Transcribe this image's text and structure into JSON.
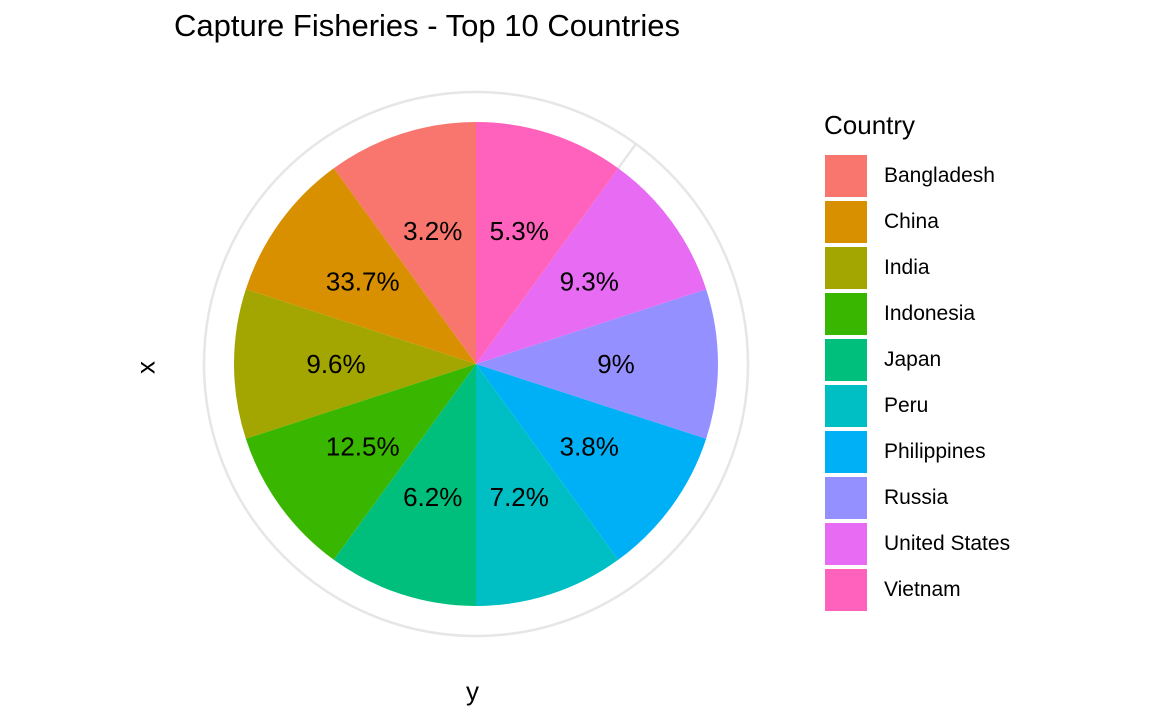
{
  "chart_data": {
    "type": "pie",
    "title": "Capture Fisheries - Top 10 Countries",
    "xlabel": "y",
    "ylabel": "x",
    "legend_title": "Country",
    "legend_position": "right",
    "grid": true,
    "slices": [
      {
        "label": "Bangladesh",
        "value": 3.2,
        "text": "3.2%",
        "color": "#F8766D"
      },
      {
        "label": "China",
        "value": 33.7,
        "text": "33.7%",
        "color": "#D89000"
      },
      {
        "label": "India",
        "value": 9.6,
        "text": "9.6%",
        "color": "#A3A500"
      },
      {
        "label": "Indonesia",
        "value": 12.5,
        "text": "12.5%",
        "color": "#39B600"
      },
      {
        "label": "Japan",
        "value": 6.2,
        "text": "6.2%",
        "color": "#00BF7D"
      },
      {
        "label": "Peru",
        "value": 7.2,
        "text": "7.2%",
        "color": "#00BFC4"
      },
      {
        "label": "Philippines",
        "value": 3.8,
        "text": "3.8%",
        "color": "#00B0F6"
      },
      {
        "label": "Russia",
        "value": 9,
        "text": "9%",
        "color": "#9590FF"
      },
      {
        "label": "United States",
        "value": 9.3,
        "text": "9.3%",
        "color": "#E76BF3"
      },
      {
        "label": "Vietnam",
        "value": 5.3,
        "text": "5.3%",
        "color": "#FF62BC"
      }
    ]
  }
}
